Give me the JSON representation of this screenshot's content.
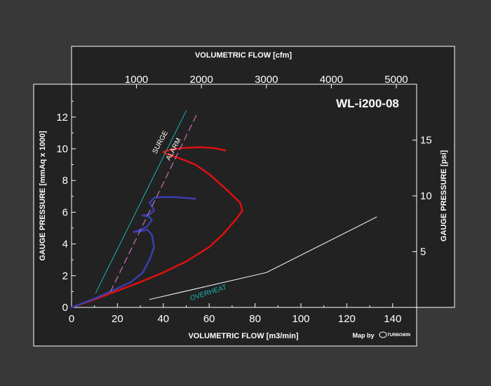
{
  "chart_data": {
    "type": "line",
    "title": "WL-i200-08",
    "xlabel": "VOLUMETRIC FLOW [m3/min]",
    "ylabel": "GAUGE PRESSURE [mmAq x 1000]",
    "x2label": "VOLUMETRIC FLOW [cfm]",
    "y2label": "GAUGE PRESSURE [psi]",
    "xlim": [
      0,
      150
    ],
    "ylim": [
      0,
      13.5
    ],
    "x_ticks": [
      "0",
      "20",
      "40",
      "60",
      "80",
      "100",
      "120",
      "140"
    ],
    "y_ticks": [
      "0",
      "2",
      "4",
      "6",
      "8",
      "10",
      "12"
    ],
    "x2_ticks": [
      "1000",
      "2000",
      "3000",
      "4000",
      "5000"
    ],
    "y2_ticks": [
      "5",
      "10",
      "15"
    ],
    "grid": false,
    "colors": {
      "background": "#383838",
      "plot": "#222222",
      "red_curve": "#e01010",
      "blue_curve": "#3a3fae",
      "surge_line": "#1ab3b3",
      "alarm_line": "#c06ab0",
      "overheat_line": "#ffffff",
      "overheat_label": "#1ab3b3"
    },
    "series": [
      {
        "key": "red",
        "values": [
          [
            0,
            0
          ],
          [
            10,
            0.5
          ],
          [
            20,
            1.05
          ],
          [
            30,
            1.6
          ],
          [
            40,
            2.2
          ],
          [
            50,
            2.9
          ],
          [
            60,
            3.8
          ],
          [
            66,
            4.6
          ],
          [
            72,
            5.6
          ],
          [
            74.5,
            6.1
          ],
          [
            73.5,
            6.6
          ],
          [
            67,
            7.5
          ],
          [
            60,
            8.4
          ],
          [
            54,
            9.0
          ],
          [
            49,
            9.3
          ],
          [
            45,
            9.5
          ],
          [
            41,
            9.7
          ],
          [
            40,
            9.8
          ],
          [
            42,
            9.9
          ],
          [
            48,
            10.05
          ],
          [
            56,
            10.1
          ],
          [
            62,
            10.05
          ],
          [
            67,
            9.9
          ]
        ]
      },
      {
        "key": "blue",
        "values": [
          [
            0,
            0
          ],
          [
            10,
            0.55
          ],
          [
            20,
            1.2
          ],
          [
            26,
            1.6
          ],
          [
            31,
            2.2
          ],
          [
            34,
            3.0
          ],
          [
            36,
            3.8
          ],
          [
            35,
            4.6
          ],
          [
            33,
            4.9
          ],
          [
            30,
            4.8
          ],
          [
            27,
            4.75
          ],
          [
            30,
            4.9
          ],
          [
            33,
            5.1
          ],
          [
            35,
            5.5
          ],
          [
            34,
            5.7
          ],
          [
            31,
            5.8
          ],
          [
            34,
            5.85
          ],
          [
            36,
            6.1
          ],
          [
            35,
            6.4
          ],
          [
            34,
            6.6
          ],
          [
            36,
            6.9
          ],
          [
            39,
            6.95
          ],
          [
            45,
            6.95
          ],
          [
            50,
            6.9
          ],
          [
            54,
            6.85
          ]
        ]
      },
      {
        "key": "surge",
        "values": [
          [
            10.5,
            0.9
          ],
          [
            50,
            12.4
          ]
        ]
      },
      {
        "key": "alarm",
        "values": [
          [
            17,
            1.0
          ],
          [
            55,
            12.3
          ]
        ]
      },
      {
        "key": "overheat",
        "values": [
          [
            34,
            0.5
          ],
          [
            85,
            2.2
          ],
          [
            133,
            5.7
          ]
        ]
      }
    ],
    "annotations": {
      "surge": "SURGE",
      "alarm": "ALARM",
      "overheat": "OVERHEAT"
    }
  },
  "footer": {
    "map_by": "Map by",
    "logo": "TURBOWIN"
  }
}
